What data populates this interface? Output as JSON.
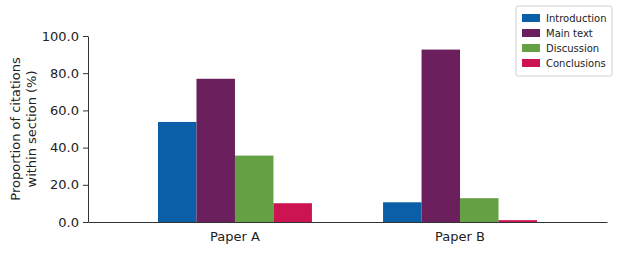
{
  "chart_data": {
    "type": "bar",
    "y_label": "Proportion of citations\nwithin section (%)",
    "categories": [
      "Paper A",
      "Paper B"
    ],
    "series": [
      {
        "name": "Introduction",
        "color": "#0b5ea8",
        "values": [
          53.8,
          10.6
        ]
      },
      {
        "name": "Main text",
        "color": "#6c1f5d",
        "values": [
          77.0,
          92.7
        ]
      },
      {
        "name": "Discussion",
        "color": "#64a145",
        "values": [
          35.7,
          12.8
        ]
      },
      {
        "name": "Conclusions",
        "color": "#cc1452",
        "values": [
          10.1,
          1.0
        ]
      }
    ],
    "ylim": [
      0,
      100
    ],
    "yticks": [
      {
        "value": 0,
        "label": "0.0"
      },
      {
        "value": 20,
        "label": "20.0"
      },
      {
        "value": 40,
        "label": "40.0"
      },
      {
        "value": 60,
        "label": "60.0"
      },
      {
        "value": 80,
        "label": "80.0"
      },
      {
        "value": 100,
        "label": "100.0"
      }
    ],
    "grid": false,
    "legend": "upper right"
  }
}
